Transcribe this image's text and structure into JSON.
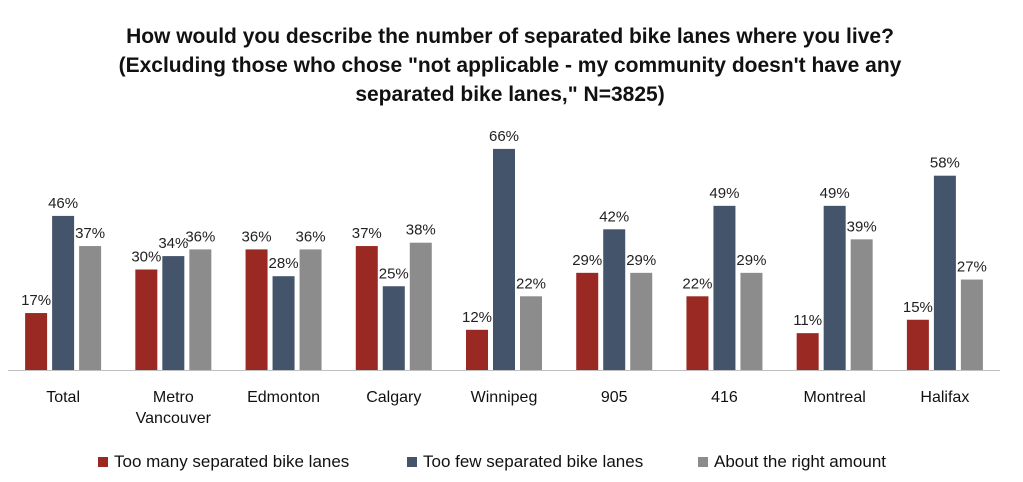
{
  "chart_data": {
    "type": "bar",
    "title": "How would you describe the number of separated bike lanes where you live?",
    "subtitle_lines": [
      "(Excluding those who chose \"not applicable - my community doesn't have any",
      "separated bike lanes,\" N=3825)"
    ],
    "categories": [
      "Total",
      "Metro Vancouver",
      "Edmonton",
      "Calgary",
      "Winnipeg",
      "905",
      "416",
      "Montreal",
      "Halifax"
    ],
    "category_label_lines": [
      [
        "Total"
      ],
      [
        "Metro",
        "Vancouver"
      ],
      [
        "Edmonton"
      ],
      [
        "Calgary"
      ],
      [
        "Winnipeg"
      ],
      [
        "905"
      ],
      [
        "416"
      ],
      [
        "Montreal"
      ],
      [
        "Halifax"
      ]
    ],
    "series": [
      {
        "name": "Too many separated bike lanes",
        "color": "#9B2923",
        "values": [
          17,
          30,
          36,
          37,
          12,
          29,
          22,
          11,
          15
        ]
      },
      {
        "name": "Too few separated bike lanes",
        "color": "#44546A",
        "values": [
          46,
          34,
          28,
          25,
          66,
          42,
          49,
          49,
          58
        ]
      },
      {
        "name": "About the right amount",
        "color": "#8C8C8C",
        "values": [
          37,
          36,
          36,
          38,
          22,
          29,
          29,
          39,
          27
        ]
      }
    ],
    "value_suffix": "%",
    "ylim": [
      0,
      70
    ],
    "xlabel": "",
    "ylabel": "",
    "grid": false,
    "legend_position": "bottom"
  }
}
